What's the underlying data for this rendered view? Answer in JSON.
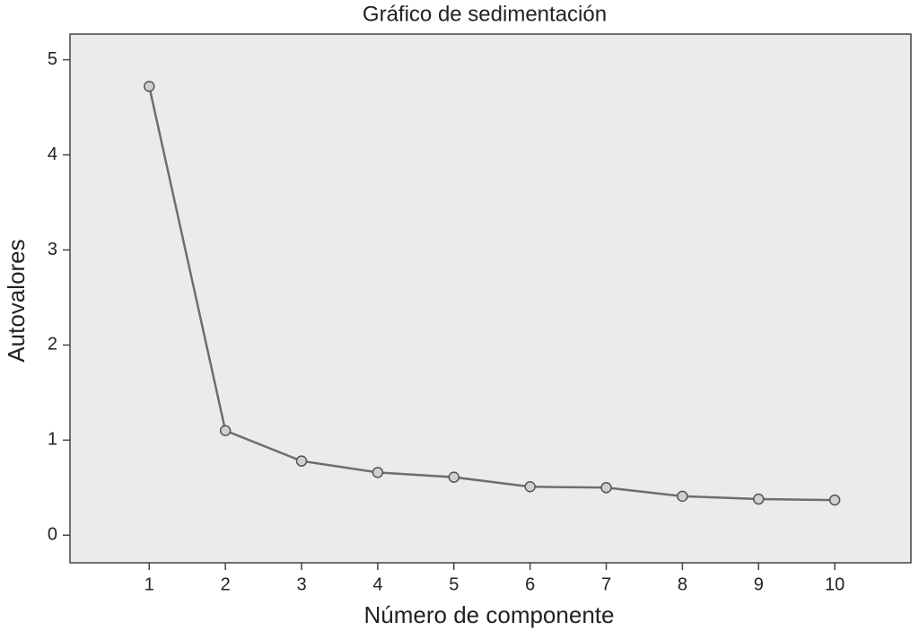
{
  "chart_data": {
    "type": "line",
    "title": "Gráfico de sedimentación",
    "x_label": "Número de componente",
    "y_label": "Autovalores",
    "x": [
      1,
      2,
      3,
      4,
      5,
      6,
      7,
      8,
      9,
      10
    ],
    "series": [
      {
        "name": "Autovalores",
        "color": "#6e6e6e",
        "values": [
          4.72,
          1.1,
          0.78,
          0.66,
          0.61,
          0.51,
          0.5,
          0.41,
          0.38,
          0.37
        ]
      }
    ],
    "xlim": [
      -0.04,
      11.0
    ],
    "ylim": [
      -0.29,
      5.27
    ],
    "xticks": [
      1,
      2,
      3,
      4,
      5,
      6,
      7,
      8,
      9,
      10
    ],
    "yticks": [
      0,
      1,
      2,
      3,
      4,
      5
    ],
    "grid": false
  }
}
